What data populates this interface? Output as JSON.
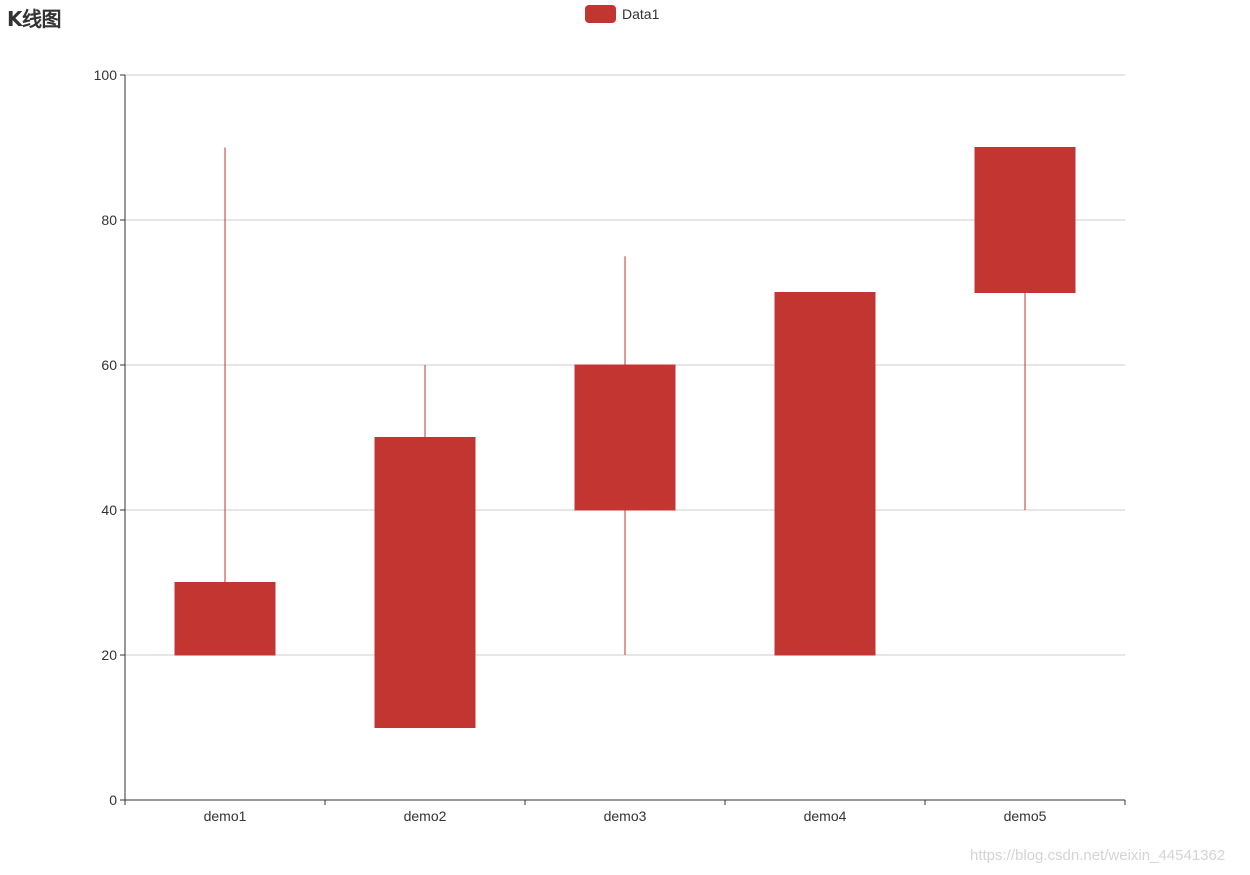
{
  "chart_data": {
    "type": "candlestick",
    "title": "K线图",
    "legend": {
      "entries": [
        "Data1"
      ],
      "placement": "top-center"
    },
    "categories": [
      "demo1",
      "demo2",
      "demo3",
      "demo4",
      "demo5"
    ],
    "series": [
      {
        "name": "Data1",
        "open": [
          20,
          50,
          40,
          20,
          70
        ],
        "close": [
          30,
          10,
          60,
          70,
          90
        ],
        "low": [
          20,
          10,
          20,
          20,
          40
        ],
        "high": [
          90,
          60,
          75,
          70,
          90
        ]
      }
    ],
    "ylim": [
      0,
      100
    ],
    "yticks": [
      0,
      20,
      40,
      60,
      80,
      100
    ],
    "ytick_labels": [
      "0",
      "20",
      "40",
      "60",
      "80",
      "100"
    ],
    "grid": true,
    "xlabel": "",
    "ylabel": ""
  },
  "colors": {
    "candle": "#c23531",
    "grid": "#cccccc",
    "axis": "#333333"
  },
  "watermark": "https://blog.csdn.net/weixin_44541362"
}
